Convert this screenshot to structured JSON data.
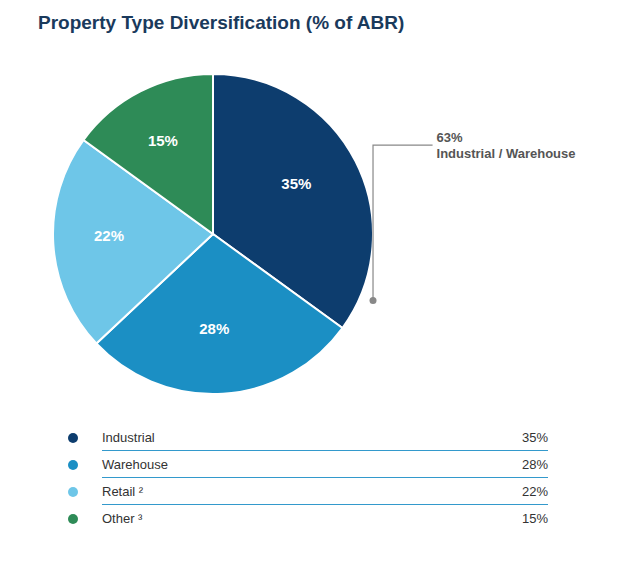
{
  "chart_data": {
    "type": "pie",
    "title": "Property Type Diversification (% of ABR)",
    "categories": [
      "Industrial",
      "Warehouse",
      "Retail ²",
      "Other ³"
    ],
    "values": [
      35,
      28,
      22,
      15
    ],
    "value_labels": [
      "35%",
      "28%",
      "22%",
      "15%"
    ],
    "colors": [
      "#0d3d6e",
      "#1b8fc4",
      "#6ec6e8",
      "#2e8b57"
    ],
    "data_labels": true,
    "legend": "bottom",
    "annotations": [
      "63%\nIndustrial / Warehouse"
    ]
  }
}
